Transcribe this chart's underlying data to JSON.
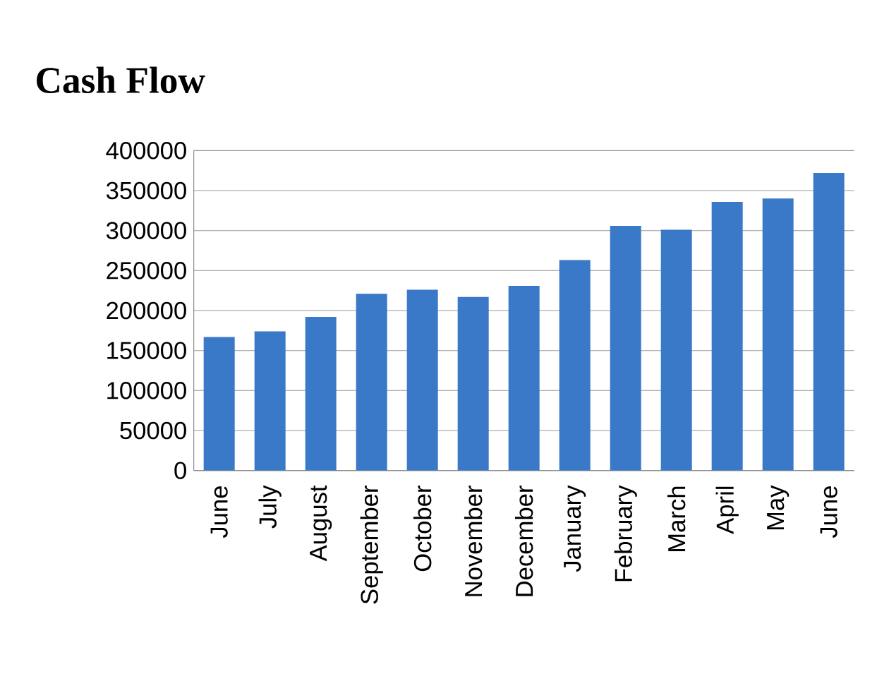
{
  "chart_data": {
    "type": "bar",
    "title": "Cash Flow",
    "categories": [
      "June",
      "July",
      "August",
      "September",
      "October",
      "November",
      "December",
      "January",
      "February",
      "March",
      "April",
      "May",
      "June"
    ],
    "values": [
      167000,
      174000,
      192000,
      221000,
      226000,
      217000,
      231000,
      263000,
      306000,
      301000,
      336000,
      340000,
      372000
    ],
    "color": "#3a78c8",
    "ylim": [
      0,
      400000
    ],
    "yticks": [
      0,
      50000,
      100000,
      150000,
      200000,
      250000,
      300000,
      350000,
      400000
    ],
    "grid": "y"
  }
}
